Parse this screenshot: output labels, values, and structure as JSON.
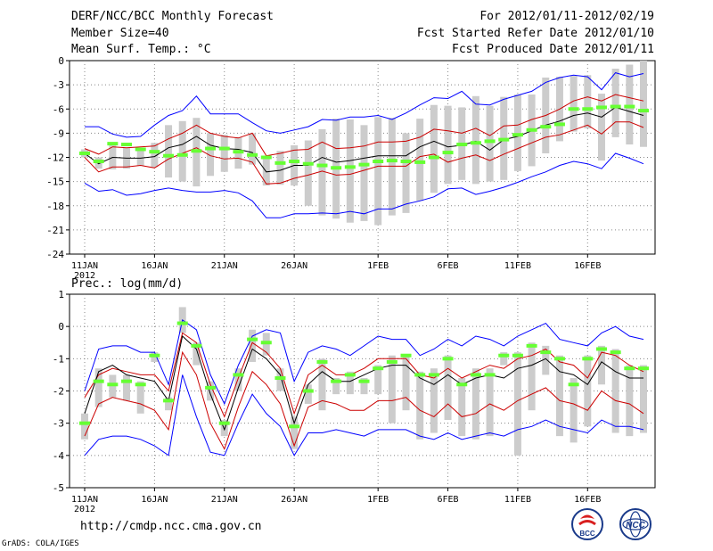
{
  "header": {
    "title": "DERF/NCC/BCC Monthly Forecast",
    "member_size": "Member Size=40",
    "variable": "Mean Surf. Temp.: °C",
    "period": "For 2012/01/11-2012/02/19",
    "start_date": "Fcst Started Refer Date 2012/01/10",
    "produced_date": "Fcst Produced Date 2012/01/11"
  },
  "footer": {
    "url": "http://cmdp.ncc.cma.gov.cn",
    "credit": "GrADS: COLA/IGES",
    "logo_left": "BCC",
    "logo_right": "NCC"
  },
  "colors": {
    "envelope": "#0000ff",
    "spread": "#cc0000",
    "mean": "#000000",
    "observed": "#66ff33",
    "range_bar": "#cccccc"
  },
  "chart_data": [
    {
      "type": "ensemble-box",
      "title": "Mean Surf. Temp.: °C",
      "xlabel": "2012",
      "x_tick_labels": [
        "11JAN",
        "16JAN",
        "21JAN",
        "26JAN",
        "1FEB",
        "6FEB",
        "11FEB",
        "16FEB"
      ],
      "x_tick_days": [
        0,
        5,
        10,
        15,
        21,
        26,
        31,
        36
      ],
      "x_range": [
        0,
        40
      ],
      "ylim": [
        -24,
        0
      ],
      "y_ticks": [
        0,
        -3,
        -6,
        -9,
        -12,
        -15,
        -18,
        -21,
        -24
      ],
      "grid": true,
      "series": [
        {
          "name": "max",
          "color": "#0000ff",
          "values": [
            -8.2,
            -8.2,
            -9.1,
            -9.5,
            -9.4,
            -8.0,
            -6.8,
            -6.2,
            -4.4,
            -6.6,
            -6.6,
            -6.6,
            -7.7,
            -8.7,
            -9.0,
            -8.6,
            -8.2,
            -7.3,
            -7.4,
            -7.0,
            -7.0,
            -6.8,
            -7.3,
            -6.5,
            -5.5,
            -4.6,
            -4.7,
            -3.8,
            -5.4,
            -5.5,
            -4.8,
            -4.3,
            -3.8,
            -2.7,
            -2.1,
            -1.8,
            -2.0,
            -3.6,
            -1.5,
            -2.0,
            -1.6
          ]
        },
        {
          "name": "upper",
          "color": "#cc0000",
          "values": [
            -10.9,
            -11.6,
            -10.7,
            -10.8,
            -10.7,
            -10.6,
            -9.7,
            -9.0,
            -8.0,
            -9.0,
            -9.4,
            -9.6,
            -9.0,
            -11.8,
            -11.5,
            -11.1,
            -11.0,
            -10.1,
            -10.9,
            -10.8,
            -10.6,
            -10.1,
            -10.1,
            -10.0,
            -9.5,
            -8.5,
            -8.7,
            -9.0,
            -8.4,
            -9.3,
            -8.1,
            -8.0,
            -7.3,
            -6.8,
            -6.0,
            -5.0,
            -4.5,
            -5.0,
            -4.2,
            -4.6,
            -5.0
          ]
        },
        {
          "name": "mean",
          "color": "#000000",
          "values": [
            -11.5,
            -12.8,
            -12.0,
            -12.1,
            -12.1,
            -11.9,
            -10.8,
            -10.4,
            -9.4,
            -10.5,
            -10.9,
            -11.0,
            -11.4,
            -13.8,
            -13.6,
            -13.0,
            -13.0,
            -12.0,
            -12.6,
            -12.4,
            -12.1,
            -11.8,
            -11.8,
            -11.8,
            -10.7,
            -10.0,
            -10.7,
            -10.5,
            -10.0,
            -11.1,
            -9.8,
            -9.4,
            -8.7,
            -8.0,
            -7.5,
            -6.8,
            -6.5,
            -7.0,
            -5.8,
            -6.3,
            -6.8
          ]
        },
        {
          "name": "lower",
          "color": "#cc0000",
          "values": [
            -12.0,
            -13.8,
            -13.2,
            -13.2,
            -13.0,
            -13.3,
            -12.2,
            -11.5,
            -10.8,
            -11.8,
            -12.2,
            -12.1,
            -12.6,
            -15.3,
            -15.2,
            -14.6,
            -14.2,
            -13.7,
            -14.2,
            -14.1,
            -13.6,
            -13.1,
            -13.1,
            -13.1,
            -11.9,
            -11.6,
            -12.6,
            -12.1,
            -11.7,
            -12.4,
            -11.6,
            -10.9,
            -10.2,
            -9.5,
            -9.2,
            -8.6,
            -8.0,
            -9.1,
            -7.6,
            -7.6,
            -8.3
          ]
        },
        {
          "name": "min",
          "color": "#0000ff",
          "values": [
            -15.2,
            -16.2,
            -16.0,
            -16.7,
            -16.5,
            -16.1,
            -15.8,
            -16.1,
            -16.3,
            -16.3,
            -16.1,
            -16.4,
            -17.4,
            -19.5,
            -19.5,
            -19.0,
            -19.0,
            -18.9,
            -19.0,
            -18.7,
            -19.0,
            -18.4,
            -18.4,
            -17.8,
            -17.4,
            -16.9,
            -15.9,
            -15.8,
            -16.6,
            -16.2,
            -15.7,
            -15.1,
            -14.4,
            -13.8,
            -13.0,
            -12.5,
            -12.8,
            -13.4,
            -11.5,
            -12.1,
            -12.8
          ]
        },
        {
          "name": "observed",
          "color": "#66ff33",
          "values": [
            -11.5,
            -12.5,
            -10.3,
            -10.4,
            -11.0,
            -11.3,
            -11.8,
            -11.7,
            -11.2,
            -10.9,
            -10.9,
            -11.3,
            -11.7,
            -12.0,
            -12.7,
            -12.5,
            -12.8,
            -13.0,
            -13.3,
            -13.2,
            -12.9,
            -12.5,
            -12.4,
            -12.5,
            -12.6,
            -12.0,
            -11.4,
            -10.4,
            -10.2,
            -10.0,
            -9.8,
            -9.2,
            -8.6,
            -8.2,
            -7.9,
            -6.0,
            -6.0,
            -5.8,
            -5.7,
            -5.7,
            -6.2
          ]
        },
        {
          "name": "range-bar-top",
          "color": "#cccccc",
          "values": [
            -11.0,
            -12.0,
            -10.2,
            -10.8,
            -10.8,
            -10.2,
            -8.0,
            -7.5,
            -7.1,
            -9.0,
            -9.2,
            -9.5,
            -9.0,
            -12.0,
            -11.2,
            -10.5,
            -9.9,
            -8.5,
            -7.2,
            -7.3,
            -8.0,
            -7.0,
            -7.1,
            -9.0,
            -7.2,
            -5.5,
            -5.6,
            -5.8,
            -4.4,
            -5.6,
            -4.5,
            -4.2,
            -4.2,
            -2.1,
            -2.0,
            -1.9,
            -1.8,
            -4.1,
            -1.0,
            -0.5,
            0.0
          ]
        },
        {
          "name": "range-bar-bottom",
          "color": "#cccccc",
          "values": [
            -12.0,
            -13.4,
            -13.5,
            -13.4,
            -13.0,
            -13.2,
            -14.5,
            -15.0,
            -15.6,
            -14.3,
            -13.8,
            -13.4,
            -12.9,
            -15.5,
            -15.4,
            -15.5,
            -18.0,
            -19.2,
            -19.6,
            -20.1,
            -19.9,
            -20.4,
            -19.2,
            -18.9,
            -17.4,
            -16.4,
            -15.3,
            -14.8,
            -15.3,
            -15.0,
            -14.8,
            -13.7,
            -13.1,
            -11.5,
            -10.0,
            -8.8,
            -8.4,
            -12.4,
            -9.5,
            -10.4,
            -10.7
          ]
        }
      ]
    },
    {
      "type": "ensemble-box",
      "title": "Prec.: log(mm/d)",
      "xlabel": "2012",
      "x_tick_labels": [
        "11JAN",
        "16JAN",
        "21JAN",
        "26JAN",
        "1FEB",
        "6FEB",
        "11FEB",
        "16FEB"
      ],
      "x_tick_days": [
        0,
        5,
        10,
        15,
        21,
        26,
        31,
        36
      ],
      "x_range": [
        0,
        40
      ],
      "ylim": [
        -5,
        1
      ],
      "y_ticks": [
        1,
        0,
        -1,
        -2,
        -3,
        -4,
        -5
      ],
      "grid": true,
      "series": [
        {
          "name": "max",
          "color": "#0000ff",
          "values": [
            -2.0,
            -0.7,
            -0.6,
            -0.6,
            -0.8,
            -0.8,
            -1.8,
            0.2,
            -0.1,
            -1.5,
            -2.4,
            -1.2,
            -0.3,
            -0.1,
            -0.2,
            -1.7,
            -0.8,
            -0.6,
            -0.7,
            -0.9,
            -0.6,
            -0.3,
            -0.4,
            -0.4,
            -0.9,
            -0.7,
            -0.4,
            -0.6,
            -0.3,
            -0.4,
            -0.6,
            -0.3,
            -0.1,
            0.1,
            -0.4,
            -0.5,
            -0.6,
            -0.2,
            0.0,
            -0.3,
            -0.4
          ]
        },
        {
          "name": "upper",
          "color": "#cc0000",
          "values": [
            -2.2,
            -1.5,
            -1.3,
            -1.4,
            -1.5,
            -1.5,
            -2.0,
            -0.2,
            -0.5,
            -1.8,
            -2.8,
            -1.6,
            -0.5,
            -0.8,
            -1.3,
            -2.7,
            -1.5,
            -1.2,
            -1.5,
            -1.5,
            -1.3,
            -1.0,
            -1.0,
            -1.0,
            -1.5,
            -1.6,
            -1.3,
            -1.6,
            -1.4,
            -1.2,
            -1.3,
            -1.0,
            -0.9,
            -0.7,
            -1.1,
            -1.2,
            -1.6,
            -0.8,
            -0.9,
            -1.2,
            -1.4
          ]
        },
        {
          "name": "mean",
          "color": "#000000",
          "values": [
            -2.7,
            -1.4,
            -1.2,
            -1.5,
            -1.6,
            -1.7,
            -2.3,
            -0.3,
            -0.7,
            -2.1,
            -3.2,
            -1.9,
            -0.7,
            -1.0,
            -1.5,
            -3.0,
            -1.8,
            -1.4,
            -1.7,
            -1.7,
            -1.5,
            -1.3,
            -1.2,
            -1.2,
            -1.6,
            -1.8,
            -1.5,
            -1.8,
            -1.6,
            -1.5,
            -1.6,
            -1.3,
            -1.2,
            -1.0,
            -1.4,
            -1.5,
            -1.8,
            -1.1,
            -1.4,
            -1.6,
            -1.6
          ]
        },
        {
          "name": "lower",
          "color": "#cc0000",
          "values": [
            -3.4,
            -2.4,
            -2.2,
            -2.3,
            -2.4,
            -2.6,
            -3.2,
            -0.8,
            -1.5,
            -3.0,
            -3.8,
            -2.5,
            -1.4,
            -1.8,
            -2.4,
            -3.7,
            -2.5,
            -2.3,
            -2.4,
            -2.6,
            -2.6,
            -2.3,
            -2.3,
            -2.2,
            -2.6,
            -2.8,
            -2.4,
            -2.8,
            -2.7,
            -2.4,
            -2.6,
            -2.3,
            -2.1,
            -1.9,
            -2.3,
            -2.4,
            -2.6,
            -2.0,
            -2.3,
            -2.4,
            -2.7
          ]
        },
        {
          "name": "min",
          "color": "#0000ff",
          "values": [
            -4.0,
            -3.5,
            -3.4,
            -3.4,
            -3.5,
            -3.7,
            -4.0,
            -1.5,
            -2.8,
            -3.9,
            -4.0,
            -3.0,
            -2.1,
            -2.7,
            -3.1,
            -4.0,
            -3.3,
            -3.3,
            -3.2,
            -3.3,
            -3.4,
            -3.2,
            -3.2,
            -3.2,
            -3.4,
            -3.5,
            -3.3,
            -3.5,
            -3.4,
            -3.3,
            -3.4,
            -3.2,
            -3.1,
            -2.9,
            -3.1,
            -3.2,
            -3.3,
            -2.9,
            -3.1,
            -3.1,
            -3.2
          ]
        },
        {
          "name": "observed",
          "color": "#66ff33",
          "values": [
            -3.0,
            -1.7,
            -1.8,
            -1.7,
            -1.8,
            -0.9,
            -2.3,
            0.1,
            -0.6,
            -1.9,
            -3.0,
            -1.5,
            -0.4,
            -0.5,
            -1.6,
            -3.1,
            -2.0,
            -1.1,
            -1.7,
            -1.5,
            -1.7,
            -1.3,
            -1.1,
            -0.9,
            -1.5,
            -1.5,
            -1.0,
            -1.8,
            -1.5,
            -1.5,
            -0.9,
            -0.9,
            -0.6,
            -0.8,
            -1.0,
            -1.8,
            -1.0,
            -0.7,
            -0.8,
            -1.3,
            -1.3
          ]
        },
        {
          "name": "range-bar-top",
          "color": "#cccccc",
          "values": [
            -2.7,
            -1.3,
            -1.5,
            -1.5,
            -1.7,
            -0.8,
            -2.2,
            0.6,
            -0.5,
            -1.7,
            -2.9,
            -1.3,
            -0.1,
            -0.2,
            -1.3,
            -2.8,
            -1.8,
            -1.0,
            -1.6,
            -1.4,
            -1.6,
            -1.2,
            -0.9,
            -0.9,
            -1.4,
            -1.3,
            -0.9,
            -1.6,
            -1.3,
            -1.3,
            -0.8,
            -0.8,
            -0.5,
            -0.6,
            -0.9,
            -1.6,
            -0.9,
            -0.6,
            -0.7,
            -1.2,
            -1.2
          ]
        },
        {
          "name": "range-bar-bottom",
          "color": "#cccccc",
          "values": [
            -3.5,
            -2.5,
            -2.2,
            -2.3,
            -2.7,
            -1.1,
            -2.6,
            -0.2,
            -1.2,
            -2.3,
            -3.4,
            -2.0,
            -1.1,
            -0.9,
            -2.0,
            -3.8,
            -2.4,
            -2.6,
            -2.1,
            -2.1,
            -2.1,
            -2.1,
            -3.0,
            -2.6,
            -3.5,
            -3.3,
            -2.9,
            -3.4,
            -3.5,
            -3.4,
            -1.2,
            -4.0,
            -2.6,
            -1.5,
            -3.4,
            -3.6,
            -3.1,
            -1.8,
            -3.3,
            -3.4,
            -3.3
          ]
        }
      ]
    }
  ]
}
